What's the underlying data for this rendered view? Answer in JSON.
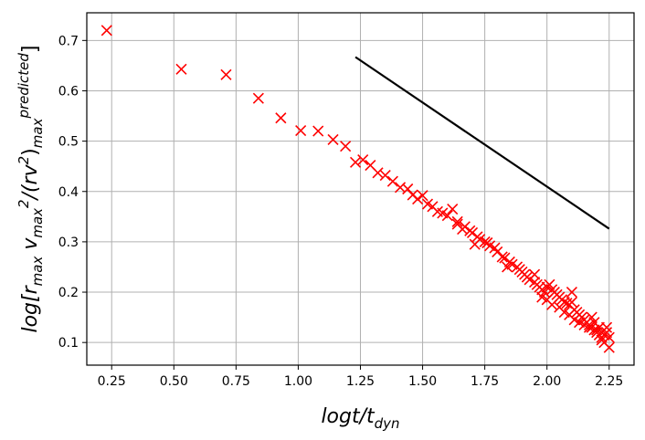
{
  "chart_data": {
    "type": "scatter",
    "xlabel": "logt/t_dyn",
    "ylabel": "log[r_max v_max^2/(rv^2)_max^predicted]",
    "xlim": [
      0.15,
      2.35
    ],
    "ylim": [
      0.055,
      0.755
    ],
    "x_ticks": [
      "0.25",
      "0.50",
      "0.75",
      "1.00",
      "1.25",
      "1.50",
      "1.75",
      "2.00",
      "2.25"
    ],
    "y_ticks": [
      "0.1",
      "0.2",
      "0.3",
      "0.4",
      "0.5",
      "0.6",
      "0.7"
    ],
    "grid": true,
    "marker_color": "#ff0000",
    "line_color": "#000000",
    "series": [
      {
        "marker": "x",
        "x": [
          0.23,
          0.53,
          0.71,
          0.84,
          0.93,
          1.01,
          1.08,
          1.14,
          1.19,
          1.23,
          1.26,
          1.29,
          1.32,
          1.35,
          1.38,
          1.41,
          1.44,
          1.46,
          1.48,
          1.5,
          1.52,
          1.54,
          1.56,
          1.58,
          1.6,
          1.62,
          1.64,
          1.66,
          1.67,
          1.69,
          1.7,
          1.72,
          1.73,
          1.75,
          1.76,
          1.77,
          1.79,
          1.8,
          1.82,
          1.83,
          1.85,
          1.86,
          1.88,
          1.89,
          1.9,
          1.91,
          1.92,
          1.93,
          1.95,
          1.96,
          1.97,
          1.98,
          1.99,
          2.0,
          2.01,
          2.02,
          2.03,
          2.04,
          2.05,
          2.06,
          2.07,
          2.08,
          2.09,
          2.1,
          2.11,
          2.12,
          2.13,
          2.14,
          2.15,
          2.16,
          2.17,
          2.18,
          2.19,
          2.2,
          2.21,
          2.22,
          2.23,
          2.24,
          2.25,
          1.98,
          2.0,
          2.02,
          2.05,
          2.07,
          2.09,
          2.11,
          2.13,
          2.15,
          2.17,
          2.19,
          2.2,
          2.21,
          2.22,
          2.23,
          2.24,
          2.25,
          1.64,
          1.71,
          1.84,
          1.95,
          2.1,
          2.18,
          2.22
        ],
        "y": [
          0.72,
          0.643,
          0.632,
          0.585,
          0.546,
          0.521,
          0.52,
          0.503,
          0.49,
          0.458,
          0.463,
          0.452,
          0.437,
          0.432,
          0.42,
          0.408,
          0.405,
          0.393,
          0.385,
          0.392,
          0.375,
          0.37,
          0.36,
          0.357,
          0.352,
          0.365,
          0.34,
          0.325,
          0.33,
          0.322,
          0.318,
          0.31,
          0.305,
          0.3,
          0.298,
          0.292,
          0.288,
          0.28,
          0.27,
          0.268,
          0.26,
          0.255,
          0.25,
          0.245,
          0.24,
          0.235,
          0.23,
          0.225,
          0.22,
          0.215,
          0.21,
          0.205,
          0.2,
          0.21,
          0.215,
          0.205,
          0.2,
          0.195,
          0.19,
          0.185,
          0.18,
          0.178,
          0.175,
          0.2,
          0.165,
          0.16,
          0.155,
          0.15,
          0.145,
          0.14,
          0.135,
          0.13,
          0.14,
          0.125,
          0.13,
          0.12,
          0.115,
          0.12,
          0.11,
          0.19,
          0.185,
          0.175,
          0.17,
          0.16,
          0.155,
          0.145,
          0.14,
          0.135,
          0.13,
          0.125,
          0.12,
          0.115,
          0.105,
          0.1,
          0.13,
          0.09,
          0.335,
          0.295,
          0.25,
          0.235,
          0.18,
          0.15,
          0.11
        ]
      },
      {
        "marker": "line",
        "x": [
          1.23,
          2.25
        ],
        "y": [
          0.667,
          0.326
        ]
      }
    ]
  }
}
